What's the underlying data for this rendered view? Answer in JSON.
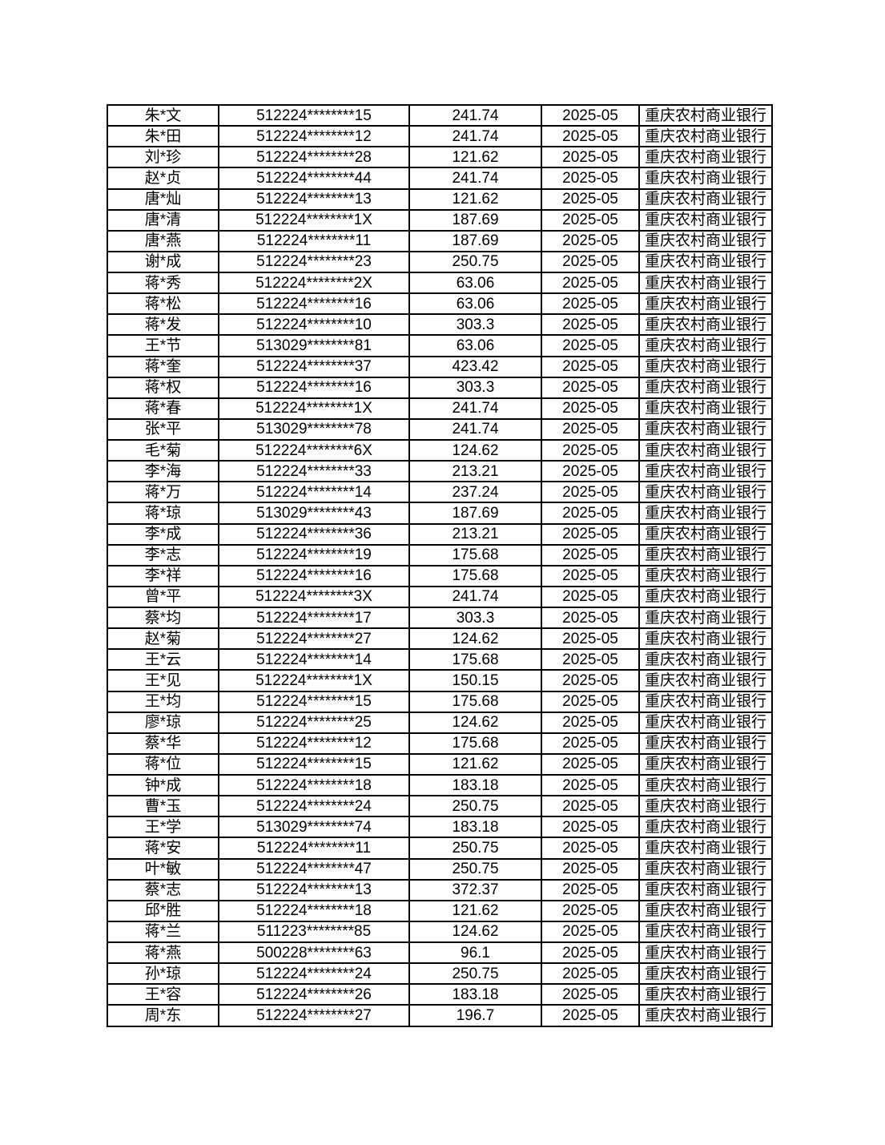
{
  "table": {
    "rows": [
      [
        "朱*文",
        "512224********15",
        "241.74",
        "2025-05",
        "重庆农村商业银行"
      ],
      [
        "朱*田",
        "512224********12",
        "241.74",
        "2025-05",
        "重庆农村商业银行"
      ],
      [
        "刘*珍",
        "512224********28",
        "121.62",
        "2025-05",
        "重庆农村商业银行"
      ],
      [
        "赵*贞",
        "512224********44",
        "241.74",
        "2025-05",
        "重庆农村商业银行"
      ],
      [
        "唐*灿",
        "512224********13",
        "121.62",
        "2025-05",
        "重庆农村商业银行"
      ],
      [
        "唐*清",
        "512224********1X",
        "187.69",
        "2025-05",
        "重庆农村商业银行"
      ],
      [
        "唐*燕",
        "512224********11",
        "187.69",
        "2025-05",
        "重庆农村商业银行"
      ],
      [
        "谢*成",
        "512224********23",
        "250.75",
        "2025-05",
        "重庆农村商业银行"
      ],
      [
        "蒋*秀",
        "512224********2X",
        "63.06",
        "2025-05",
        "重庆农村商业银行"
      ],
      [
        "蒋*松",
        "512224********16",
        "63.06",
        "2025-05",
        "重庆农村商业银行"
      ],
      [
        "蒋*发",
        "512224********10",
        "303.3",
        "2025-05",
        "重庆农村商业银行"
      ],
      [
        "王*节",
        "513029********81",
        "63.06",
        "2025-05",
        "重庆农村商业银行"
      ],
      [
        "蒋*奎",
        "512224********37",
        "423.42",
        "2025-05",
        "重庆农村商业银行"
      ],
      [
        "蒋*权",
        "512224********16",
        "303.3",
        "2025-05",
        "重庆农村商业银行"
      ],
      [
        "蒋*春",
        "512224********1X",
        "241.74",
        "2025-05",
        "重庆农村商业银行"
      ],
      [
        "张*平",
        "513029********78",
        "241.74",
        "2025-05",
        "重庆农村商业银行"
      ],
      [
        "毛*菊",
        "512224********6X",
        "124.62",
        "2025-05",
        "重庆农村商业银行"
      ],
      [
        "李*海",
        "512224********33",
        "213.21",
        "2025-05",
        "重庆农村商业银行"
      ],
      [
        "蒋*万",
        "512224********14",
        "237.24",
        "2025-05",
        "重庆农村商业银行"
      ],
      [
        "蒋*琼",
        "513029********43",
        "187.69",
        "2025-05",
        "重庆农村商业银行"
      ],
      [
        "李*成",
        "512224********36",
        "213.21",
        "2025-05",
        "重庆农村商业银行"
      ],
      [
        "李*志",
        "512224********19",
        "175.68",
        "2025-05",
        "重庆农村商业银行"
      ],
      [
        "李*祥",
        "512224********16",
        "175.68",
        "2025-05",
        "重庆农村商业银行"
      ],
      [
        "曾*平",
        "512224********3X",
        "241.74",
        "2025-05",
        "重庆农村商业银行"
      ],
      [
        "蔡*均",
        "512224********17",
        "303.3",
        "2025-05",
        "重庆农村商业银行"
      ],
      [
        "赵*菊",
        "512224********27",
        "124.62",
        "2025-05",
        "重庆农村商业银行"
      ],
      [
        "王*云",
        "512224********14",
        "175.68",
        "2025-05",
        "重庆农村商业银行"
      ],
      [
        "王*见",
        "512224********1X",
        "150.15",
        "2025-05",
        "重庆农村商业银行"
      ],
      [
        "王*均",
        "512224********15",
        "175.68",
        "2025-05",
        "重庆农村商业银行"
      ],
      [
        "廖*琼",
        "512224********25",
        "124.62",
        "2025-05",
        "重庆农村商业银行"
      ],
      [
        "蔡*华",
        "512224********12",
        "175.68",
        "2025-05",
        "重庆农村商业银行"
      ],
      [
        "蒋*位",
        "512224********15",
        "121.62",
        "2025-05",
        "重庆农村商业银行"
      ],
      [
        "钟*成",
        "512224********18",
        "183.18",
        "2025-05",
        "重庆农村商业银行"
      ],
      [
        "曹*玉",
        "512224********24",
        "250.75",
        "2025-05",
        "重庆农村商业银行"
      ],
      [
        "王*学",
        "513029********74",
        "183.18",
        "2025-05",
        "重庆农村商业银行"
      ],
      [
        "蒋*安",
        "512224********11",
        "250.75",
        "2025-05",
        "重庆农村商业银行"
      ],
      [
        "叶*敏",
        "512224********47",
        "250.75",
        "2025-05",
        "重庆农村商业银行"
      ],
      [
        "蔡*志",
        "512224********13",
        "372.37",
        "2025-05",
        "重庆农村商业银行"
      ],
      [
        "邱*胜",
        "512224********18",
        "121.62",
        "2025-05",
        "重庆农村商业银行"
      ],
      [
        "蒋*兰",
        "511223********85",
        "124.62",
        "2025-05",
        "重庆农村商业银行"
      ],
      [
        "蒋*燕",
        "500228********63",
        "96.1",
        "2025-05",
        "重庆农村商业银行"
      ],
      [
        "孙*琼",
        "512224********24",
        "250.75",
        "2025-05",
        "重庆农村商业银行"
      ],
      [
        "王*容",
        "512224********26",
        "183.18",
        "2025-05",
        "重庆农村商业银行"
      ],
      [
        "周*东",
        "512224********27",
        "196.7",
        "2025-05",
        "重庆农村商业银行"
      ]
    ]
  }
}
